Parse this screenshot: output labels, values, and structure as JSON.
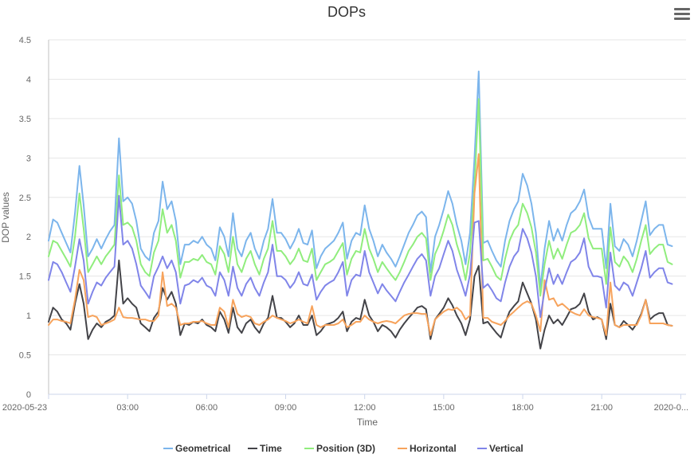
{
  "toolbar": {
    "menu_icon": "hamburger-menu-icon"
  },
  "chart_data": {
    "type": "line",
    "title": "DOPs",
    "xlabel": "Time",
    "ylabel": "DOP values",
    "ylim": [
      0,
      4.5
    ],
    "yticks": [
      "0",
      "0.5",
      "1",
      "1.5",
      "2",
      "2.5",
      "3",
      "3.5",
      "4",
      "4.5"
    ],
    "xticks": [
      "2020-05-23",
      "03:00",
      "06:00",
      "09:00",
      "12:00",
      "15:00",
      "18:00",
      "21:00",
      "2020-0..."
    ],
    "xlim_hours": [
      0,
      24.2
    ],
    "grid": true,
    "legend_position": "bottom-center",
    "x_hours": [
      0.0,
      0.17,
      0.33,
      0.5,
      0.67,
      0.83,
      1.0,
      1.17,
      1.33,
      1.5,
      1.67,
      1.83,
      2.0,
      2.17,
      2.33,
      2.5,
      2.67,
      2.83,
      3.0,
      3.17,
      3.33,
      3.5,
      3.67,
      3.83,
      4.0,
      4.17,
      4.33,
      4.5,
      4.67,
      4.83,
      5.0,
      5.17,
      5.33,
      5.5,
      5.67,
      5.83,
      6.0,
      6.17,
      6.33,
      6.5,
      6.67,
      6.83,
      7.0,
      7.17,
      7.33,
      7.5,
      7.67,
      7.83,
      8.0,
      8.17,
      8.33,
      8.5,
      8.67,
      8.83,
      9.0,
      9.17,
      9.33,
      9.5,
      9.67,
      9.83,
      10.0,
      10.17,
      10.33,
      10.5,
      10.67,
      10.83,
      11.0,
      11.17,
      11.33,
      11.5,
      11.67,
      11.83,
      12.0,
      12.17,
      12.33,
      12.5,
      12.67,
      12.83,
      13.0,
      13.17,
      13.33,
      13.5,
      13.67,
      13.83,
      14.0,
      14.17,
      14.33,
      14.5,
      14.67,
      14.83,
      15.0,
      15.17,
      15.33,
      15.5,
      15.67,
      15.83,
      16.0,
      16.17,
      16.33,
      16.5,
      16.67,
      16.83,
      17.0,
      17.17,
      17.33,
      17.5,
      17.67,
      17.83,
      18.0,
      18.17,
      18.33,
      18.5,
      18.67,
      18.83,
      19.0,
      19.17,
      19.33,
      19.5,
      19.67,
      19.83,
      20.0,
      20.17,
      20.33,
      20.5,
      20.67,
      20.83,
      21.0,
      21.17,
      21.33,
      21.5,
      21.67,
      21.83,
      22.0,
      22.17,
      22.33,
      22.5,
      22.67,
      22.83,
      23.0,
      23.17,
      23.33,
      23.5,
      23.67,
      23.83,
      24.0
    ],
    "series": [
      {
        "name": "Geometrical",
        "color": "#7cb5ec",
        "values": [
          1.95,
          2.22,
          2.18,
          2.05,
          1.92,
          1.8,
          2.3,
          2.9,
          2.4,
          1.75,
          1.85,
          1.97,
          1.85,
          1.97,
          2.07,
          2.15,
          3.25,
          2.45,
          2.5,
          2.42,
          2.2,
          1.85,
          1.75,
          1.7,
          2.05,
          2.2,
          2.7,
          2.35,
          2.45,
          2.2,
          1.65,
          1.9,
          1.9,
          1.95,
          1.92,
          2.0,
          1.9,
          1.85,
          1.7,
          2.12,
          2.0,
          1.75,
          2.3,
          1.85,
          1.75,
          1.95,
          2.05,
          1.85,
          1.72,
          1.95,
          2.1,
          2.48,
          2.05,
          2.05,
          1.97,
          1.85,
          1.95,
          2.1,
          1.92,
          1.9,
          2.08,
          1.6,
          1.75,
          1.85,
          1.9,
          1.95,
          2.05,
          2.18,
          1.72,
          1.95,
          2.05,
          2.02,
          2.4,
          2.1,
          1.95,
          1.75,
          1.9,
          1.8,
          1.72,
          1.62,
          1.75,
          1.9,
          2.05,
          2.15,
          2.27,
          2.32,
          2.25,
          1.55,
          2.0,
          2.15,
          2.35,
          2.58,
          2.42,
          2.15,
          1.95,
          1.65,
          2.05,
          3.0,
          4.1,
          1.92,
          1.95,
          1.82,
          1.7,
          1.62,
          1.95,
          2.2,
          2.35,
          2.45,
          2.8,
          2.65,
          2.42,
          2.05,
          1.35,
          1.85,
          2.2,
          1.95,
          2.1,
          1.95,
          2.15,
          2.3,
          2.35,
          2.45,
          2.6,
          2.25,
          2.1,
          2.1,
          2.1,
          1.6,
          2.42,
          1.88,
          1.82,
          1.97,
          1.9,
          1.75,
          1.95,
          2.2,
          2.45,
          2.02,
          2.1,
          2.15,
          2.15,
          1.9,
          1.88
        ]
      },
      {
        "name": "Time",
        "color": "#434348",
        "values": [
          0.92,
          1.1,
          1.05,
          0.95,
          0.9,
          0.82,
          1.15,
          1.4,
          1.15,
          0.7,
          0.82,
          0.9,
          0.85,
          0.92,
          0.95,
          1.0,
          1.7,
          1.15,
          1.22,
          1.15,
          1.1,
          0.9,
          0.85,
          0.8,
          0.97,
          1.05,
          1.35,
          1.2,
          1.3,
          1.15,
          0.75,
          0.9,
          0.88,
          0.92,
          0.9,
          0.95,
          0.88,
          0.85,
          0.8,
          1.05,
          0.95,
          0.78,
          1.1,
          0.85,
          0.78,
          0.9,
          0.95,
          0.85,
          0.78,
          0.9,
          0.97,
          1.25,
          0.97,
          0.97,
          0.92,
          0.85,
          0.9,
          1.0,
          0.88,
          0.88,
          1.0,
          0.75,
          0.8,
          0.88,
          0.9,
          0.92,
          0.97,
          1.05,
          0.8,
          0.92,
          0.97,
          0.95,
          1.2,
          1.0,
          0.92,
          0.8,
          0.88,
          0.85,
          0.8,
          0.72,
          0.82,
          0.9,
          0.97,
          1.03,
          1.1,
          1.12,
          1.08,
          0.7,
          0.95,
          1.02,
          1.1,
          1.22,
          1.13,
          1.0,
          0.9,
          0.75,
          0.95,
          1.5,
          1.63,
          0.9,
          0.92,
          0.85,
          0.78,
          0.72,
          0.9,
          1.05,
          1.12,
          1.18,
          1.42,
          1.28,
          1.15,
          0.95,
          0.58,
          0.82,
          1.0,
          0.9,
          0.95,
          0.88,
          0.98,
          1.08,
          1.1,
          1.15,
          1.28,
          1.05,
          0.95,
          0.98,
          0.95,
          0.7,
          1.15,
          0.88,
          0.85,
          0.93,
          0.88,
          0.82,
          0.9,
          1.02,
          1.2,
          0.95,
          1.0,
          1.03,
          1.03,
          0.88,
          0.87
        ]
      },
      {
        "name": "Position (3D)",
        "color": "#90ed7d",
        "values": [
          1.75,
          1.95,
          1.92,
          1.82,
          1.72,
          1.62,
          2.0,
          2.55,
          2.1,
          1.55,
          1.65,
          1.75,
          1.65,
          1.75,
          1.82,
          1.9,
          2.78,
          2.15,
          2.18,
          2.12,
          1.95,
          1.65,
          1.55,
          1.5,
          1.8,
          1.95,
          2.35,
          2.05,
          2.15,
          1.95,
          1.48,
          1.68,
          1.68,
          1.72,
          1.7,
          1.77,
          1.68,
          1.65,
          1.52,
          1.88,
          1.78,
          1.55,
          2.0,
          1.65,
          1.55,
          1.72,
          1.82,
          1.65,
          1.52,
          1.72,
          1.85,
          2.2,
          1.82,
          1.82,
          1.75,
          1.65,
          1.72,
          1.85,
          1.7,
          1.68,
          1.85,
          1.45,
          1.55,
          1.65,
          1.68,
          1.72,
          1.82,
          1.92,
          1.52,
          1.72,
          1.82,
          1.8,
          2.1,
          1.85,
          1.72,
          1.55,
          1.68,
          1.6,
          1.52,
          1.45,
          1.55,
          1.68,
          1.82,
          1.9,
          2.0,
          2.05,
          1.98,
          1.45,
          1.78,
          1.9,
          2.08,
          2.28,
          2.15,
          1.9,
          1.72,
          1.45,
          1.8,
          2.65,
          3.75,
          1.7,
          1.72,
          1.62,
          1.5,
          1.45,
          1.72,
          1.95,
          2.08,
          2.15,
          2.42,
          2.3,
          2.12,
          1.8,
          1.25,
          1.65,
          1.95,
          1.72,
          1.85,
          1.72,
          1.9,
          2.05,
          2.08,
          2.15,
          2.3,
          1.98,
          1.85,
          1.85,
          1.85,
          1.4,
          2.12,
          1.68,
          1.62,
          1.75,
          1.68,
          1.55,
          1.72,
          1.95,
          2.15,
          1.78,
          1.85,
          1.9,
          1.9,
          1.68,
          1.65
        ]
      },
      {
        "name": "Horizontal",
        "color": "#f7a35c",
        "values": [
          0.88,
          0.95,
          0.95,
          0.93,
          0.92,
          0.9,
          1.2,
          1.58,
          1.45,
          0.98,
          1.0,
          0.98,
          0.88,
          0.9,
          0.92,
          0.95,
          1.1,
          0.98,
          0.97,
          0.97,
          0.96,
          0.95,
          0.95,
          0.93,
          0.93,
          1.0,
          1.55,
          1.12,
          1.15,
          1.1,
          0.88,
          0.9,
          0.9,
          0.92,
          0.92,
          0.93,
          0.9,
          0.88,
          0.88,
          1.1,
          1.05,
          0.85,
          1.2,
          1.02,
          0.98,
          1.0,
          0.98,
          0.9,
          0.88,
          0.92,
          0.95,
          1.0,
          0.97,
          0.95,
          0.93,
          0.9,
          0.92,
          0.95,
          0.92,
          0.9,
          1.12,
          0.88,
          0.85,
          0.88,
          0.88,
          0.88,
          0.9,
          0.95,
          0.85,
          0.88,
          0.92,
          0.92,
          1.0,
          0.95,
          0.92,
          0.9,
          0.92,
          0.93,
          0.92,
          0.9,
          0.95,
          1.0,
          1.02,
          1.03,
          1.03,
          1.02,
          1.02,
          0.75,
          0.95,
          1.0,
          1.05,
          1.08,
          1.07,
          1.1,
          1.05,
          0.95,
          1.0,
          2.55,
          3.05,
          0.97,
          0.97,
          0.92,
          0.9,
          0.88,
          0.93,
          1.0,
          1.05,
          1.1,
          1.15,
          1.18,
          1.15,
          1.0,
          0.8,
          1.45,
          1.2,
          1.22,
          1.12,
          1.15,
          1.1,
          1.05,
          1.02,
          1.0,
          1.08,
          1.0,
          0.98,
          0.97,
          0.95,
          0.75,
          1.42,
          0.88,
          0.85,
          0.88,
          0.88,
          0.88,
          0.88,
          1.0,
          1.2,
          0.9,
          0.9,
          0.9,
          0.9,
          0.88,
          0.87
        ]
      },
      {
        "name": "Vertical",
        "color": "#8085e9",
        "values": [
          1.45,
          1.68,
          1.65,
          1.55,
          1.42,
          1.3,
          1.62,
          1.97,
          1.7,
          1.15,
          1.3,
          1.42,
          1.38,
          1.48,
          1.55,
          1.62,
          2.52,
          1.9,
          1.95,
          1.85,
          1.65,
          1.38,
          1.3,
          1.22,
          1.5,
          1.62,
          1.75,
          1.6,
          1.7,
          1.55,
          1.15,
          1.38,
          1.4,
          1.45,
          1.42,
          1.48,
          1.38,
          1.35,
          1.25,
          1.55,
          1.45,
          1.25,
          1.62,
          1.35,
          1.25,
          1.4,
          1.48,
          1.35,
          1.25,
          1.42,
          1.55,
          1.9,
          1.5,
          1.5,
          1.45,
          1.35,
          1.42,
          1.55,
          1.4,
          1.38,
          1.52,
          1.2,
          1.3,
          1.38,
          1.42,
          1.45,
          1.55,
          1.68,
          1.25,
          1.45,
          1.52,
          1.5,
          1.82,
          1.55,
          1.42,
          1.28,
          1.4,
          1.32,
          1.25,
          1.18,
          1.3,
          1.42,
          1.52,
          1.62,
          1.72,
          1.78,
          1.7,
          1.25,
          1.5,
          1.6,
          1.78,
          1.95,
          1.82,
          1.58,
          1.42,
          1.25,
          1.52,
          2.18,
          2.2,
          1.35,
          1.4,
          1.32,
          1.22,
          1.18,
          1.42,
          1.62,
          1.75,
          1.82,
          2.1,
          1.98,
          1.8,
          1.5,
          0.98,
          1.32,
          1.6,
          1.4,
          1.52,
          1.4,
          1.55,
          1.68,
          1.72,
          1.8,
          1.98,
          1.62,
          1.5,
          1.5,
          1.48,
          1.1,
          1.8,
          1.38,
          1.32,
          1.42,
          1.38,
          1.25,
          1.42,
          1.6,
          1.82,
          1.48,
          1.55,
          1.6,
          1.6,
          1.42,
          1.4
        ]
      }
    ]
  }
}
